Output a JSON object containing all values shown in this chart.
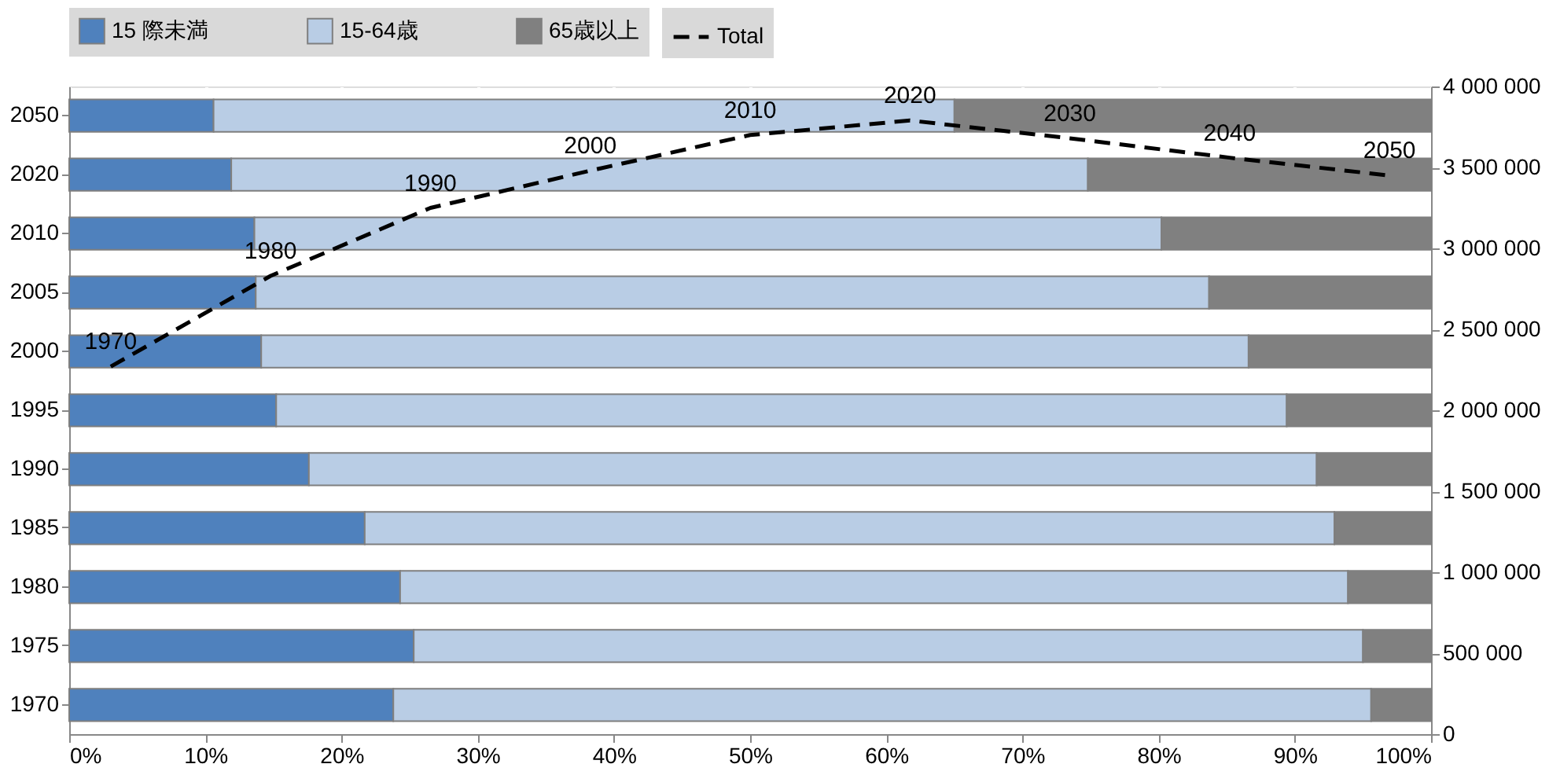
{
  "chart_data": [
    {
      "type": "bar",
      "orientation": "horizontal",
      "stacked": true,
      "categories": [
        "2050",
        "2020",
        "2010",
        "2005",
        "2000",
        "1995",
        "1990",
        "1985",
        "1980",
        "1975",
        "1970"
      ],
      "series": [
        {
          "name": "15 際未満",
          "color": "#4f81bd",
          "values": [
            10.6,
            11.9,
            13.6,
            13.7,
            14.1,
            15.2,
            17.6,
            21.7,
            24.3,
            25.3,
            23.8
          ]
        },
        {
          "name": "15-64歳",
          "color": "#b9cde5",
          "values": [
            54.4,
            62.9,
            66.6,
            70.0,
            72.5,
            74.2,
            74.0,
            71.2,
            69.6,
            69.7,
            71.8
          ]
        },
        {
          "name": "65歳以上",
          "color": "#808080",
          "values": [
            35.0,
            25.2,
            19.8,
            16.3,
            13.4,
            10.6,
            8.4,
            7.1,
            6.1,
            5.0,
            4.4
          ]
        }
      ],
      "xlim": [
        0,
        100
      ],
      "xticks": [
        {
          "value": 0,
          "label": "0%"
        },
        {
          "value": 10,
          "label": "10%"
        },
        {
          "value": 20,
          "label": "20%"
        },
        {
          "value": 30,
          "label": "30%"
        },
        {
          "value": 40,
          "label": "40%"
        },
        {
          "value": 50,
          "label": "50%"
        },
        {
          "value": 60,
          "label": "60%"
        },
        {
          "value": 70,
          "label": "70%"
        },
        {
          "value": 80,
          "label": "80%"
        },
        {
          "value": 90,
          "label": "90%"
        },
        {
          "value": 100,
          "label": "100%"
        }
      ],
      "grid": "x",
      "legend": "top"
    },
    {
      "type": "line",
      "categories": [
        "1970",
        "1980",
        "1990",
        "2000",
        "2010",
        "2020",
        "2030",
        "2040",
        "2050"
      ],
      "series": [
        {
          "name": "Total",
          "color": "#000000",
          "line_style": "dashed",
          "values": [
            2270000,
            2830000,
            3250000,
            3480000,
            3700000,
            3790000,
            3680000,
            3560000,
            3450000
          ]
        }
      ],
      "ylim": [
        0,
        4000000
      ],
      "yticks": [
        0,
        {
          "value": 500000,
          "label": "500 000"
        },
        {
          "value": 1000000,
          "label": "1 000 000"
        },
        {
          "value": 1500000,
          "label": "1 500 000"
        },
        {
          "value": 2000000,
          "label": "2 000 000"
        },
        {
          "value": 2500000,
          "label": "2 500 000"
        },
        {
          "value": 3000000,
          "label": "3 000 000"
        },
        {
          "value": 3500000,
          "label": "3 500 000"
        },
        {
          "value": 4000000,
          "label": "4 000 000"
        }
      ],
      "tick_labels": "y",
      "legend": "top"
    }
  ]
}
